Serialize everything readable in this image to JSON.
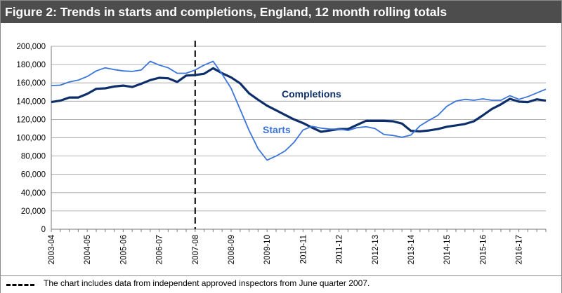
{
  "title": "Figure 2: Trends in starts and completions, England, 12 month rolling totals",
  "footnote": "The chart includes data from independent approved inspectors from June quarter 2007.",
  "chart_data": {
    "type": "line",
    "ylim": [
      0,
      200000
    ],
    "y_ticks": [
      "0",
      "20,000",
      "40,000",
      "60,000",
      "80,000",
      "100,000",
      "120,000",
      "140,000",
      "160,000",
      "180,000",
      "200,000"
    ],
    "x_tick_labels": [
      "2003-04",
      "2004-05",
      "2005-06",
      "2006-07",
      "2007-08",
      "2008-09",
      "2009-10",
      "2010-11",
      "2011-12",
      "2012-13",
      "2013-14",
      "2014-15",
      "2015-16",
      "2016-17"
    ],
    "x_tick_start": "Q1 2003-04",
    "grid": true,
    "reference_line": {
      "at": "Q1 2007-08",
      "style": "dashed",
      "color": "#000000"
    },
    "series": [
      {
        "name": "Completions",
        "color": "#0d2e6b",
        "values": [
          139000,
          140500,
          144000,
          144000,
          148000,
          153500,
          154000,
          156000,
          157000,
          155500,
          159000,
          163000,
          165500,
          165000,
          161000,
          168000,
          168500,
          170000,
          176000,
          170500,
          166000,
          159500,
          148500,
          141500,
          135000,
          130000,
          125000,
          120000,
          116000,
          111000,
          106500,
          108000,
          109500,
          109500,
          114000,
          118500,
          118500,
          118500,
          118000,
          115500,
          107500,
          107000,
          108000,
          109500,
          112000,
          113500,
          115000,
          118000,
          124500,
          131500,
          136500,
          142500,
          139500,
          139000,
          142000,
          140500
        ]
      },
      {
        "name": "Starts",
        "color": "#3b74d9",
        "values": [
          157000,
          157500,
          161000,
          163000,
          167000,
          173000,
          176500,
          174500,
          173000,
          172500,
          174000,
          183500,
          179500,
          176500,
          170500,
          170500,
          174000,
          179500,
          183500,
          169500,
          154000,
          131000,
          108000,
          88000,
          75500,
          80000,
          85500,
          95000,
          108500,
          112500,
          110500,
          109500,
          109500,
          108000,
          111000,
          112000,
          110000,
          103500,
          102500,
          100500,
          103000,
          113000,
          119000,
          124500,
          134500,
          140000,
          142000,
          141000,
          142500,
          141000,
          141000,
          146000,
          142000,
          145000,
          149000,
          153000
        ]
      }
    ]
  }
}
